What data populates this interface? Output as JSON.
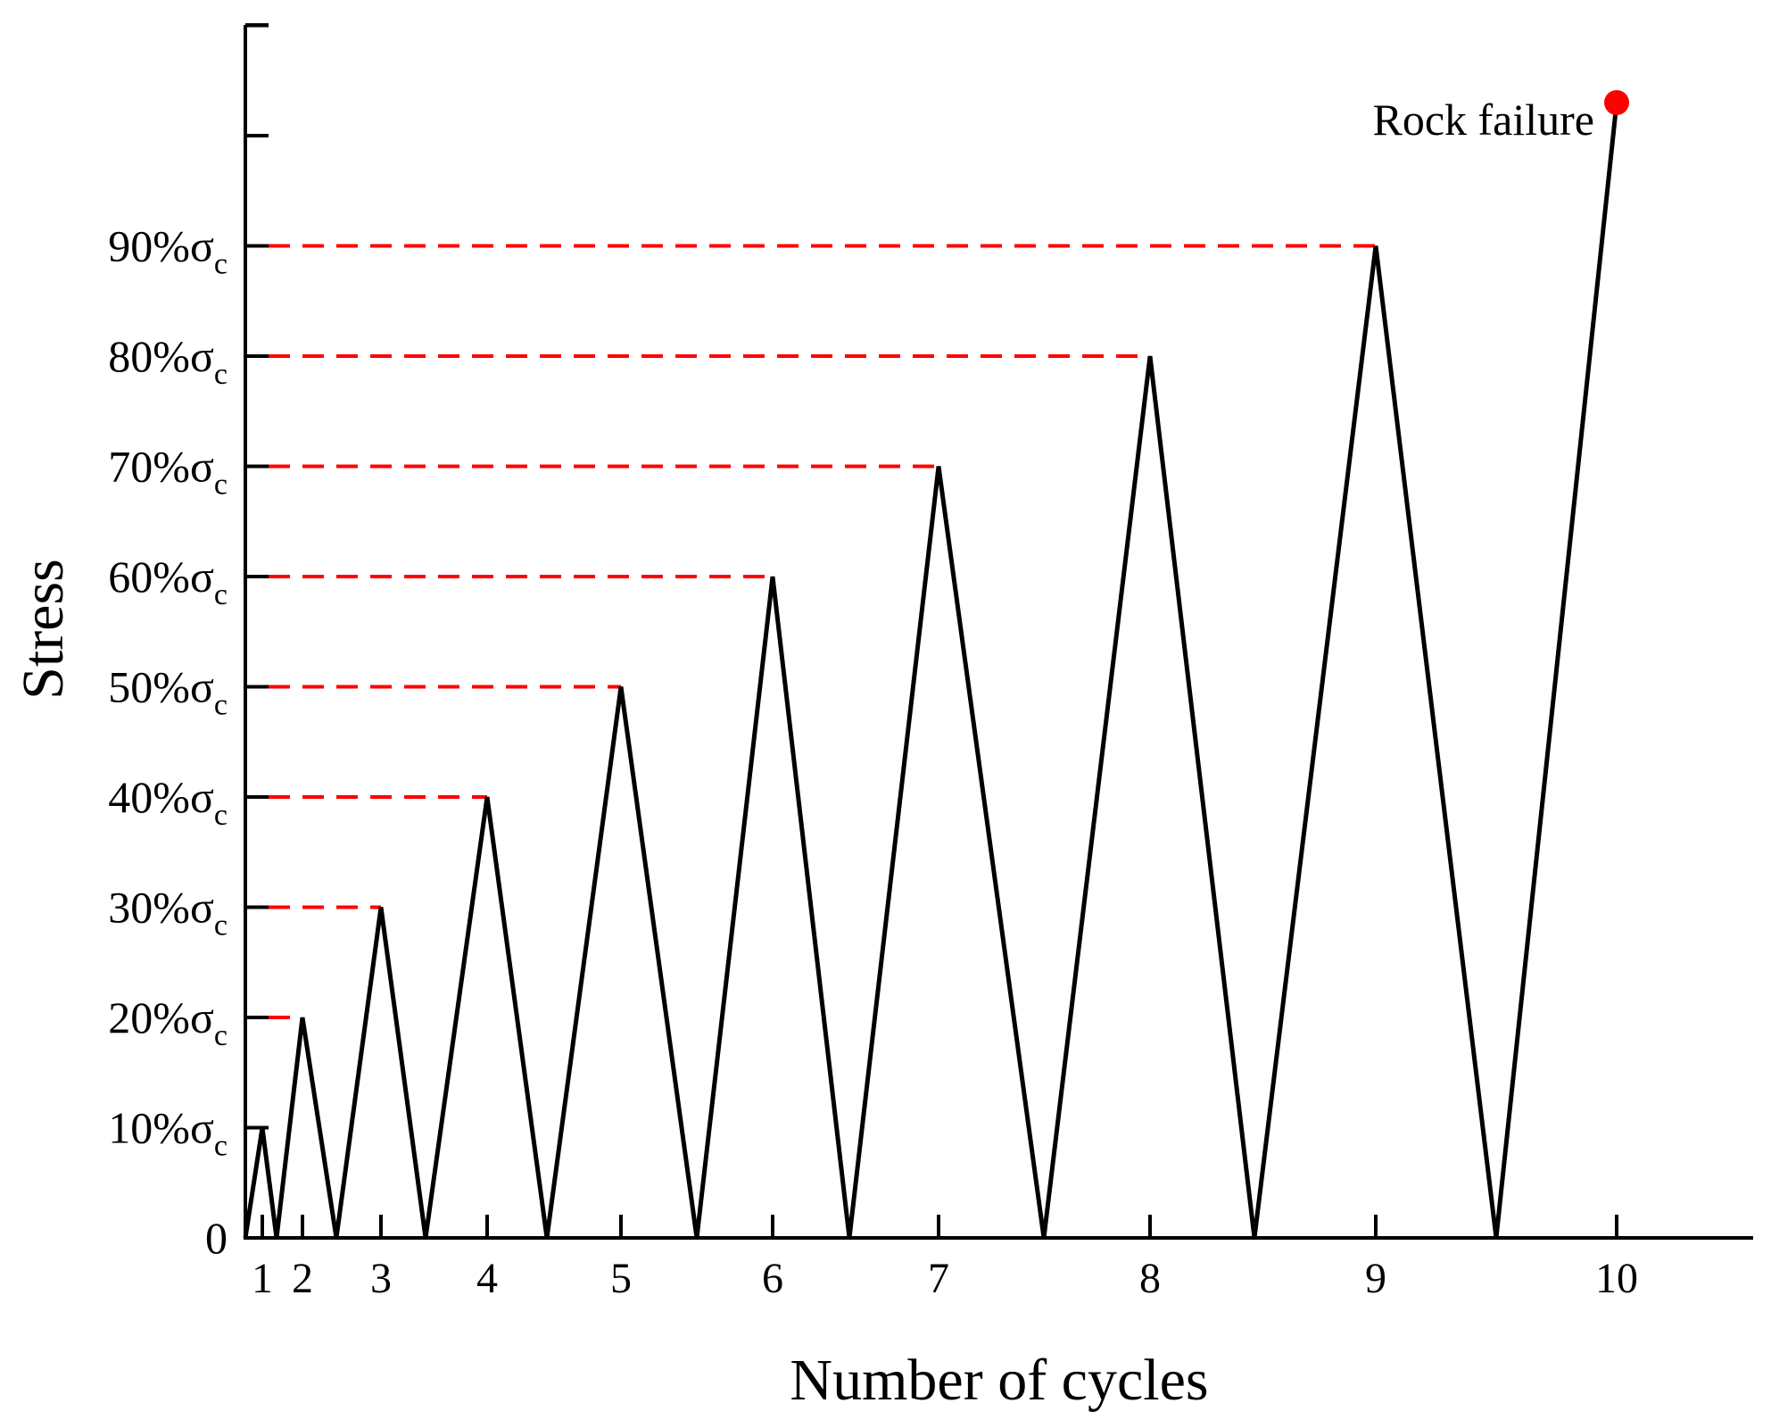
{
  "chart_data": {
    "type": "line",
    "xlabel": "Number of cycles",
    "ylabel": "Stress",
    "y_tick_labels": [
      {
        "value": 0,
        "text": "0",
        "sub": ""
      },
      {
        "value": 10,
        "text": "10%σ",
        "sub": "c"
      },
      {
        "value": 20,
        "text": "20%σ",
        "sub": "c"
      },
      {
        "value": 30,
        "text": "30%σ",
        "sub": "c"
      },
      {
        "value": 40,
        "text": "40%σ",
        "sub": "c"
      },
      {
        "value": 50,
        "text": "50%σ",
        "sub": "c"
      },
      {
        "value": 60,
        "text": "60%σ",
        "sub": "c"
      },
      {
        "value": 70,
        "text": "70%σ",
        "sub": "c"
      },
      {
        "value": 80,
        "text": "80%σ",
        "sub": "c"
      },
      {
        "value": 90,
        "text": "90%σ",
        "sub": "c"
      }
    ],
    "y_extra_ticks": [
      100,
      110
    ],
    "ylim": [
      0,
      110
    ],
    "cycles": [
      {
        "label": "1",
        "peak": 10
      },
      {
        "label": "2",
        "peak": 20
      },
      {
        "label": "3",
        "peak": 30
      },
      {
        "label": "4",
        "peak": 40
      },
      {
        "label": "5",
        "peak": 50
      },
      {
        "label": "6",
        "peak": 60
      },
      {
        "label": "7",
        "peak": 70
      },
      {
        "label": "8",
        "peak": 80
      },
      {
        "label": "9",
        "peak": 90
      },
      {
        "label": "10",
        "peak": 103
      }
    ],
    "reference_lines": [
      10,
      20,
      30,
      40,
      50,
      60,
      70,
      80,
      90
    ],
    "reference_line_color": "#ff0000",
    "line_color": "#000000",
    "failure_marker_color": "#ff0000",
    "annotation": {
      "text": "Rock failure",
      "cycle": "10"
    }
  }
}
